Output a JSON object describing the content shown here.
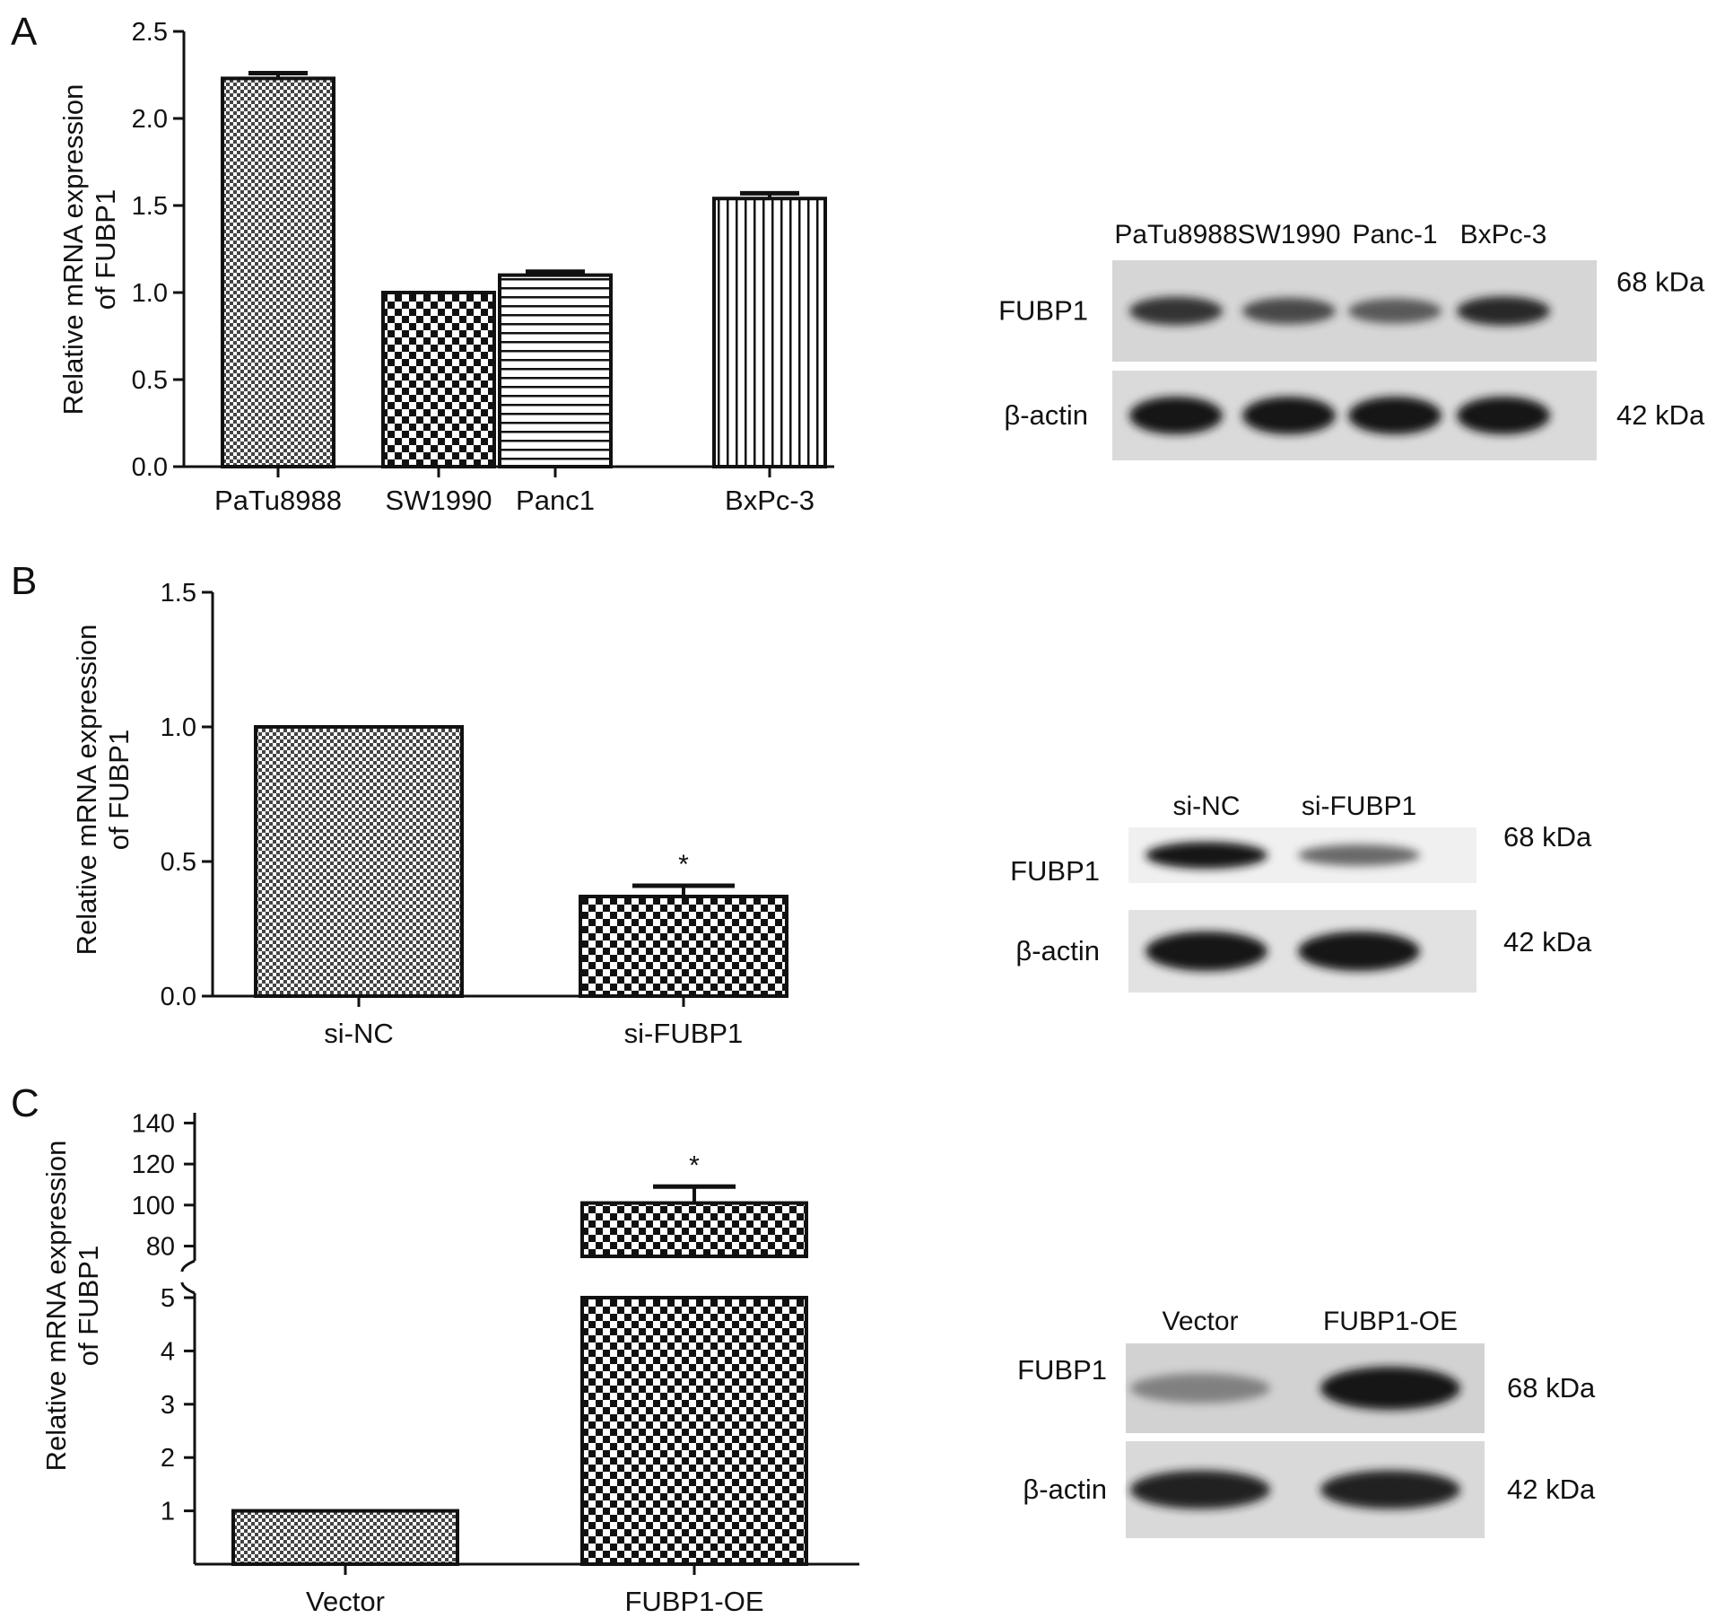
{
  "chart_data": [
    {
      "panel": "A",
      "type": "bar",
      "categories": [
        "PaTu8988",
        "SW1990",
        "Panc1",
        "BxPc-3"
      ],
      "values": [
        2.23,
        1.0,
        1.1,
        1.54
      ],
      "errors": [
        0.03,
        0.0,
        0.02,
        0.03
      ],
      "patterns": [
        "fine-check",
        "check",
        "hstripe",
        "vstripe"
      ],
      "significance": [
        "",
        "",
        "",
        ""
      ],
      "ylabel_lines": [
        "Relative mRNA expression",
        "of FUBP1"
      ],
      "ylim": [
        0,
        2.5
      ],
      "yticks": [
        "0.0",
        "0.5",
        "1.0",
        "1.5",
        "2.0",
        "2.5"
      ],
      "grid": false
    },
    {
      "panel": "B",
      "type": "bar",
      "categories": [
        "si-NC",
        "si-FUBP1"
      ],
      "values": [
        1.0,
        0.37
      ],
      "errors": [
        0.0,
        0.04
      ],
      "patterns": [
        "fine-check",
        "check"
      ],
      "significance": [
        "",
        "*"
      ],
      "ylabel_lines": [
        "Relative mRNA expression",
        "of FUBP1"
      ],
      "ylim": [
        0,
        1.5
      ],
      "yticks": [
        "0.0",
        "0.5",
        "1.0",
        "1.5"
      ],
      "grid": false
    },
    {
      "panel": "C",
      "type": "bar",
      "categories": [
        "Vector",
        "FUBP1-OE"
      ],
      "values": [
        1.0,
        101
      ],
      "errors": [
        0.0,
        8
      ],
      "patterns": [
        "fine-check",
        "check"
      ],
      "significance": [
        "",
        "*"
      ],
      "ylabel_lines": [
        "Relative mRNA expression",
        "of FUBP1"
      ],
      "broken_axis": true,
      "ylim_lower": [
        0,
        5
      ],
      "ylim_upper": [
        75,
        145
      ],
      "yticks_lower": [
        "1",
        "2",
        "3",
        "4",
        "5"
      ],
      "yticks_upper": [
        "80",
        "100",
        "120",
        "140"
      ],
      "grid": false
    }
  ],
  "blots": [
    {
      "panel": "A",
      "lanes": [
        "PaTu8988",
        "SW1990",
        "Panc-1",
        "BxPc-3"
      ],
      "rows": [
        {
          "protein": "FUBP1",
          "size": "68 kDa",
          "intensities": [
            0.85,
            0.7,
            0.6,
            0.9
          ]
        },
        {
          "protein": "β-actin",
          "size": "42 kDa",
          "intensities": [
            1.0,
            1.0,
            1.0,
            1.0
          ]
        }
      ]
    },
    {
      "panel": "B",
      "lanes": [
        "si-NC",
        "si-FUBP1"
      ],
      "rows": [
        {
          "protein": "FUBP1",
          "size": "68 kDa",
          "intensities": [
            1.0,
            0.55
          ]
        },
        {
          "protein": "β-actin",
          "size": "42 kDa",
          "intensities": [
            1.0,
            1.0
          ]
        }
      ]
    },
    {
      "panel": "C",
      "lanes": [
        "Vector",
        "FUBP1-OE"
      ],
      "rows": [
        {
          "protein": "FUBP1",
          "size": "68 kDa",
          "intensities": [
            0.3,
            1.0
          ]
        },
        {
          "protein": "β-actin",
          "size": "42 kDa",
          "intensities": [
            0.95,
            0.95
          ]
        }
      ]
    }
  ]
}
